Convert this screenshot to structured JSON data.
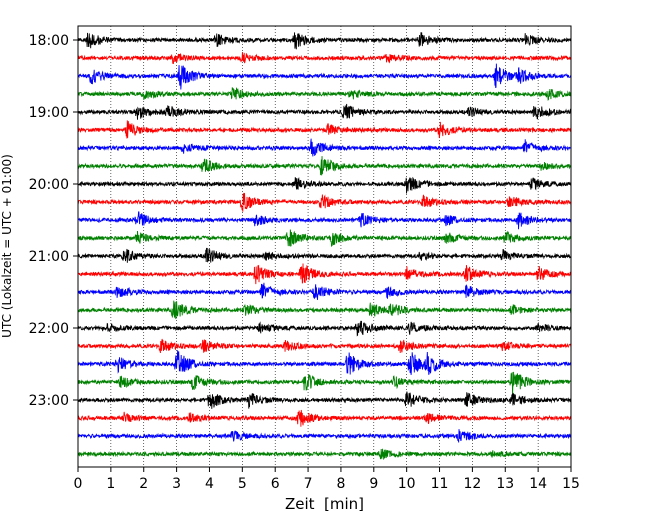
{
  "chart_data": {
    "type": "line",
    "subtype": "seismogram-helicorder",
    "xlabel": "Zeit  [min]",
    "ylabel": "UTC (Lokalzeit = UTC + 01:00)",
    "xlim": [
      0,
      15
    ],
    "x_ticks": [
      "0",
      "1",
      "2",
      "3",
      "4",
      "5",
      "6",
      "7",
      "8",
      "9",
      "10",
      "11",
      "12",
      "13",
      "14",
      "15"
    ],
    "y_ticks": [
      {
        "label": "18:00",
        "trace_index": 0
      },
      {
        "label": "19:00",
        "trace_index": 4
      },
      {
        "label": "20:00",
        "trace_index": 8
      },
      {
        "label": "21:00",
        "trace_index": 12
      },
      {
        "label": "22:00",
        "trace_index": 16
      },
      {
        "label": "23:00",
        "trace_index": 20
      }
    ],
    "grid": {
      "vertical": true,
      "horizontal": false,
      "style": "dotted"
    },
    "trace_minutes": 15,
    "trace_colors": [
      "#000000",
      "#ff0000",
      "#0000ff",
      "#008000"
    ],
    "traces": [
      {
        "start": "18:00",
        "color": "#000000",
        "bursts": [
          [
            0.3,
            1.0
          ],
          [
            4.2,
            0.7
          ],
          [
            6.6,
            1.0
          ],
          [
            10.4,
            0.8
          ],
          [
            13.6,
            0.6
          ]
        ]
      },
      {
        "start": "18:15",
        "color": "#ff0000",
        "bursts": [
          [
            2.9,
            0.5
          ],
          [
            5.0,
            0.5
          ],
          [
            9.4,
            0.4
          ]
        ]
      },
      {
        "start": "18:30",
        "color": "#0000ff",
        "bursts": [
          [
            0.4,
            0.8
          ],
          [
            3.1,
            1.5
          ],
          [
            12.7,
            1.3
          ],
          [
            13.4,
            0.7
          ]
        ]
      },
      {
        "start": "18:45",
        "color": "#008000",
        "bursts": [
          [
            2.0,
            0.6
          ],
          [
            4.7,
            0.6
          ],
          [
            8.3,
            0.5
          ],
          [
            14.3,
            0.5
          ]
        ]
      },
      {
        "start": "19:00",
        "color": "#000000",
        "bursts": [
          [
            1.8,
            0.8
          ],
          [
            2.7,
            0.7
          ],
          [
            8.1,
            1.0
          ],
          [
            11.9,
            0.5
          ],
          [
            13.9,
            0.9
          ]
        ]
      },
      {
        "start": "19:15",
        "color": "#ff0000",
        "bursts": [
          [
            1.5,
            0.9
          ],
          [
            7.6,
            0.6
          ],
          [
            11.0,
            0.8
          ]
        ]
      },
      {
        "start": "19:30",
        "color": "#0000ff",
        "bursts": [
          [
            3.2,
            0.5
          ],
          [
            7.1,
            1.0
          ],
          [
            13.6,
            0.8
          ]
        ]
      },
      {
        "start": "19:45",
        "color": "#008000",
        "bursts": [
          [
            3.8,
            0.8
          ],
          [
            7.4,
            1.2
          ],
          [
            14.1,
            0.4
          ]
        ]
      },
      {
        "start": "20:00",
        "color": "#000000",
        "bursts": [
          [
            6.6,
            0.7
          ],
          [
            10.0,
            0.9
          ],
          [
            13.8,
            0.6
          ]
        ]
      },
      {
        "start": "20:15",
        "color": "#ff0000",
        "bursts": [
          [
            5.0,
            1.0
          ],
          [
            7.4,
            0.8
          ],
          [
            10.5,
            0.7
          ],
          [
            13.1,
            0.7
          ]
        ]
      },
      {
        "start": "20:30",
        "color": "#0000ff",
        "bursts": [
          [
            1.8,
            0.9
          ],
          [
            5.4,
            0.7
          ],
          [
            8.6,
            0.7
          ],
          [
            11.2,
            0.5
          ],
          [
            13.4,
            0.9
          ]
        ]
      },
      {
        "start": "20:45",
        "color": "#008000",
        "bursts": [
          [
            1.8,
            0.6
          ],
          [
            6.4,
            1.0
          ],
          [
            7.7,
            0.8
          ],
          [
            11.2,
            0.5
          ],
          [
            13.0,
            0.6
          ]
        ]
      },
      {
        "start": "21:00",
        "color": "#000000",
        "bursts": [
          [
            1.4,
            0.8
          ],
          [
            3.9,
            0.9
          ],
          [
            5.7,
            0.5
          ],
          [
            10.4,
            0.4
          ],
          [
            12.9,
            0.6
          ]
        ]
      },
      {
        "start": "21:15",
        "color": "#ff0000",
        "bursts": [
          [
            5.4,
            1.0
          ],
          [
            6.8,
            1.2
          ],
          [
            10.0,
            0.7
          ],
          [
            11.8,
            0.9
          ],
          [
            14.0,
            0.8
          ]
        ]
      },
      {
        "start": "21:30",
        "color": "#0000ff",
        "bursts": [
          [
            1.2,
            0.8
          ],
          [
            5.6,
            1.0
          ],
          [
            7.2,
            0.9
          ],
          [
            9.4,
            0.6
          ],
          [
            11.8,
            0.7
          ]
        ]
      },
      {
        "start": "21:45",
        "color": "#008000",
        "bursts": [
          [
            2.9,
            1.1
          ],
          [
            5.1,
            0.7
          ],
          [
            8.9,
            0.8
          ],
          [
            9.5,
            0.7
          ],
          [
            13.2,
            0.5
          ]
        ]
      },
      {
        "start": "22:00",
        "color": "#000000",
        "bursts": [
          [
            0.8,
            0.5
          ],
          [
            5.5,
            0.6
          ],
          [
            8.5,
            1.0
          ],
          [
            10.1,
            0.6
          ],
          [
            14.0,
            0.4
          ]
        ]
      },
      {
        "start": "22:15",
        "color": "#ff0000",
        "bursts": [
          [
            2.5,
            0.8
          ],
          [
            3.8,
            0.6
          ],
          [
            6.3,
            0.5
          ],
          [
            9.8,
            0.7
          ],
          [
            12.9,
            0.6
          ]
        ]
      },
      {
        "start": "22:30",
        "color": "#0000ff",
        "bursts": [
          [
            1.2,
            0.8
          ],
          [
            3.0,
            1.5
          ],
          [
            8.2,
            1.3
          ],
          [
            10.1,
            1.4
          ],
          [
            10.6,
            1.1
          ]
        ]
      },
      {
        "start": "22:45",
        "color": "#008000",
        "bursts": [
          [
            1.3,
            0.6
          ],
          [
            3.5,
            0.8
          ],
          [
            6.9,
            1.0
          ],
          [
            9.6,
            0.6
          ],
          [
            13.2,
            1.5
          ]
        ]
      },
      {
        "start": "23:00",
        "color": "#000000",
        "bursts": [
          [
            4.0,
            1.0
          ],
          [
            5.2,
            0.8
          ],
          [
            10.0,
            0.9
          ],
          [
            11.8,
            0.8
          ],
          [
            13.2,
            0.7
          ]
        ]
      },
      {
        "start": "23:15",
        "color": "#ff0000",
        "bursts": [
          [
            1.4,
            0.5
          ],
          [
            3.4,
            0.5
          ],
          [
            6.7,
            1.0
          ],
          [
            10.6,
            0.6
          ]
        ]
      },
      {
        "start": "23:30",
        "color": "#0000ff",
        "bursts": [
          [
            4.7,
            0.5
          ],
          [
            11.6,
            0.7
          ]
        ]
      },
      {
        "start": "23:45",
        "color": "#008000",
        "bursts": [
          [
            9.2,
            0.5
          ],
          [
            12.6,
            0.3
          ]
        ]
      }
    ]
  }
}
